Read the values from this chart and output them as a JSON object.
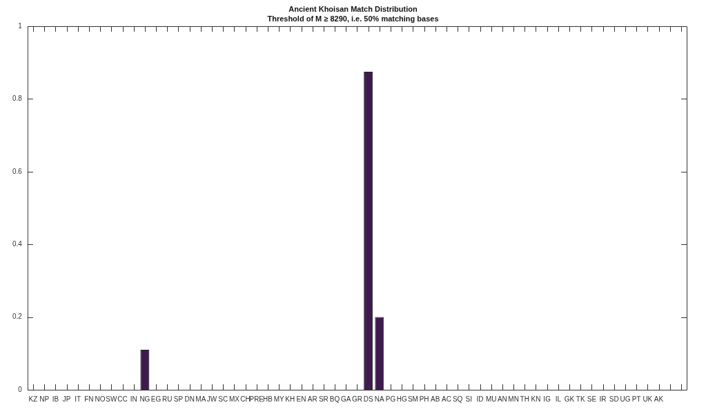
{
  "chart_data": {
    "type": "bar",
    "title": "Ancient Khoisan Match Distribution",
    "subtitle": "Threshold of M ≥ 8290, i.e. 50% matching bases",
    "categories": [
      "KZ",
      "NP",
      "IB",
      "JP",
      "IT",
      "FN",
      "NO",
      "SW",
      "CC",
      "IN",
      "NG",
      "EG",
      "RU",
      "SP",
      "DN",
      "MA",
      "JW",
      "SC",
      "MX",
      "CH",
      "PRE",
      "HB",
      "MY",
      "KH",
      "EN",
      "AR",
      "SR",
      "BQ",
      "GA",
      "GR",
      "DS",
      "NA",
      "PG",
      "HG",
      "SM",
      "PH",
      "AB",
      "AC",
      "SQ",
      "SI",
      "ID",
      "MU",
      "AN",
      "MN",
      "TH",
      "KN",
      "IG",
      "IL",
      "GK",
      "TK",
      "SE",
      "IR",
      "SD",
      "UG",
      "PT",
      "UK",
      "AK",
      null,
      null
    ],
    "values": [
      0,
      0,
      0,
      0,
      0,
      0,
      0,
      0,
      0,
      0,
      0.11,
      0,
      0,
      0,
      0,
      0,
      0,
      0,
      0,
      0,
      0,
      0,
      0,
      0,
      0,
      0,
      0,
      0,
      0,
      0,
      0.875,
      0.2,
      0,
      0,
      0,
      0,
      0,
      0,
      0,
      0,
      0,
      0,
      0,
      0,
      0,
      0,
      0,
      0,
      0,
      0,
      0,
      0,
      0,
      0,
      0,
      0,
      0,
      0,
      0
    ],
    "color": "#3f1a4f",
    "ylim": [
      0,
      1
    ],
    "yticks": [
      0,
      0.2,
      0.4,
      0.6,
      0.8,
      1
    ],
    "grid": false,
    "legend": false
  }
}
